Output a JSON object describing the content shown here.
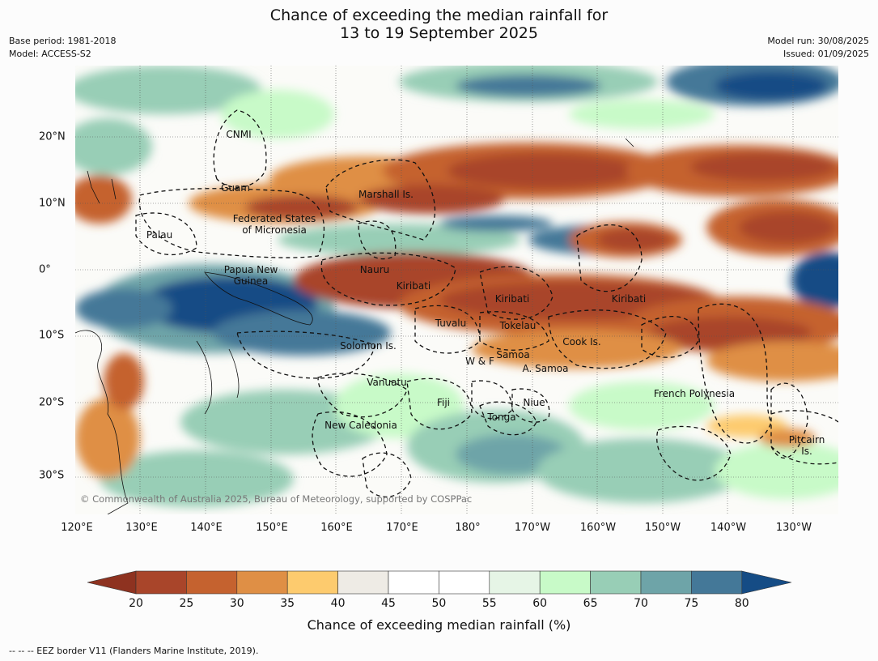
{
  "title_line1": "Chance of exceeding the median rainfall for",
  "title_line2": "13 to 19 September 2025",
  "base_period": "Base period: 1981-2018",
  "model": "Model: ACCESS-S2",
  "model_run": "Model run: 30/08/2025",
  "issued": "Issued: 01/09/2025",
  "copyright": "© Commonwealth of Australia 2025, Bureau of Meteorology, supported by COSPPac",
  "regions": [
    {
      "name": "CNMI"
    },
    {
      "name": "Guam"
    },
    {
      "name": "Marshall Is."
    },
    {
      "name": "Federated States\nof Micronesia"
    },
    {
      "name": "Palau"
    },
    {
      "name": "Papua New\nGuinea"
    },
    {
      "name": "Nauru"
    },
    {
      "name": "Kiribati"
    },
    {
      "name": "Kiribati"
    },
    {
      "name": "Kiribati"
    },
    {
      "name": "Tuvalu"
    },
    {
      "name": "Tokelau"
    },
    {
      "name": "Cook Is."
    },
    {
      "name": "Solomon Is."
    },
    {
      "name": "Samoa"
    },
    {
      "name": "W & F"
    },
    {
      "name": "A. Samoa"
    },
    {
      "name": "Vanuatu"
    },
    {
      "name": "Fiji"
    },
    {
      "name": "Niue"
    },
    {
      "name": "Tonga"
    },
    {
      "name": "French Polynesia"
    },
    {
      "name": "New Caledonia"
    },
    {
      "name": "Pitcairn\nIs."
    }
  ],
  "lon_labels": [
    "120°E",
    "130°E",
    "140°E",
    "150°E",
    "160°E",
    "170°E",
    "180°",
    "170°W",
    "160°W",
    "150°W",
    "140°W",
    "130°W"
  ],
  "lat_labels": [
    "20°N",
    "10°N",
    "0°",
    "10°S",
    "20°S",
    "30°S"
  ],
  "colorbar": {
    "ticks": [
      "20",
      "25",
      "30",
      "35",
      "40",
      "45",
      "50",
      "55",
      "60",
      "65",
      "70",
      "75",
      "80"
    ],
    "colors": [
      "#a9452a",
      "#c5622f",
      "#df8f45",
      "#fdcb6e",
      "#eeebe5",
      "#ffffff",
      "#ffffff",
      "#e6f5e6",
      "#c8fac8",
      "#98ceb6",
      "#6ea4a8",
      "#447898"
    ],
    "low_color": "#8e3220",
    "high_color": "#154c85",
    "label": "Chance of exceeding median rainfall (%)"
  },
  "footnote": "--  --  -- EEZ border V11 (Flanders Marine Institute, 2019)."
}
